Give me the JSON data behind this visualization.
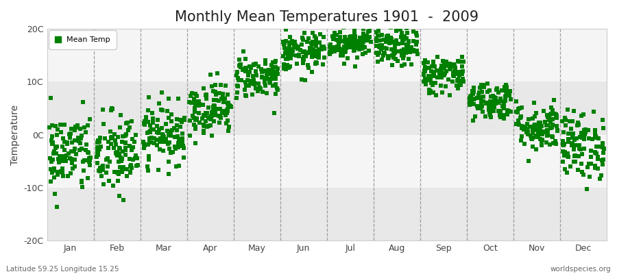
{
  "title": "Monthly Mean Temperatures 1901  -  2009",
  "ylabel": "Temperature",
  "xlabel_labels": [
    "Jan",
    "Feb",
    "Mar",
    "Apr",
    "May",
    "Jun",
    "Jul",
    "Aug",
    "Sep",
    "Oct",
    "Nov",
    "Dec"
  ],
  "subtitle_left": "Latitude 59.25 Longitude 15.25",
  "subtitle_right": "worldspecies.org",
  "ylim": [
    -20,
    20
  ],
  "ytick_labels": [
    "-20C",
    "-10C",
    "0C",
    "10C",
    "20C"
  ],
  "ytick_values": [
    -20,
    -10,
    0,
    10,
    20
  ],
  "dot_color": "#008000",
  "dot_size": 14,
  "bg_color": "#f0f0f0",
  "plot_bg_light": "#f5f5f5",
  "plot_bg_dark": "#e8e8e8",
  "legend_label": "Mean Temp",
  "title_fontsize": 15,
  "years": 109,
  "monthly_means": [
    -3.5,
    -3.8,
    0.2,
    5.0,
    11.0,
    15.5,
    17.5,
    16.5,
    11.5,
    6.5,
    1.5,
    -2.0
  ],
  "monthly_stds": [
    3.8,
    4.0,
    2.8,
    2.5,
    2.0,
    1.8,
    1.6,
    1.8,
    1.8,
    1.8,
    2.3,
    3.2
  ]
}
